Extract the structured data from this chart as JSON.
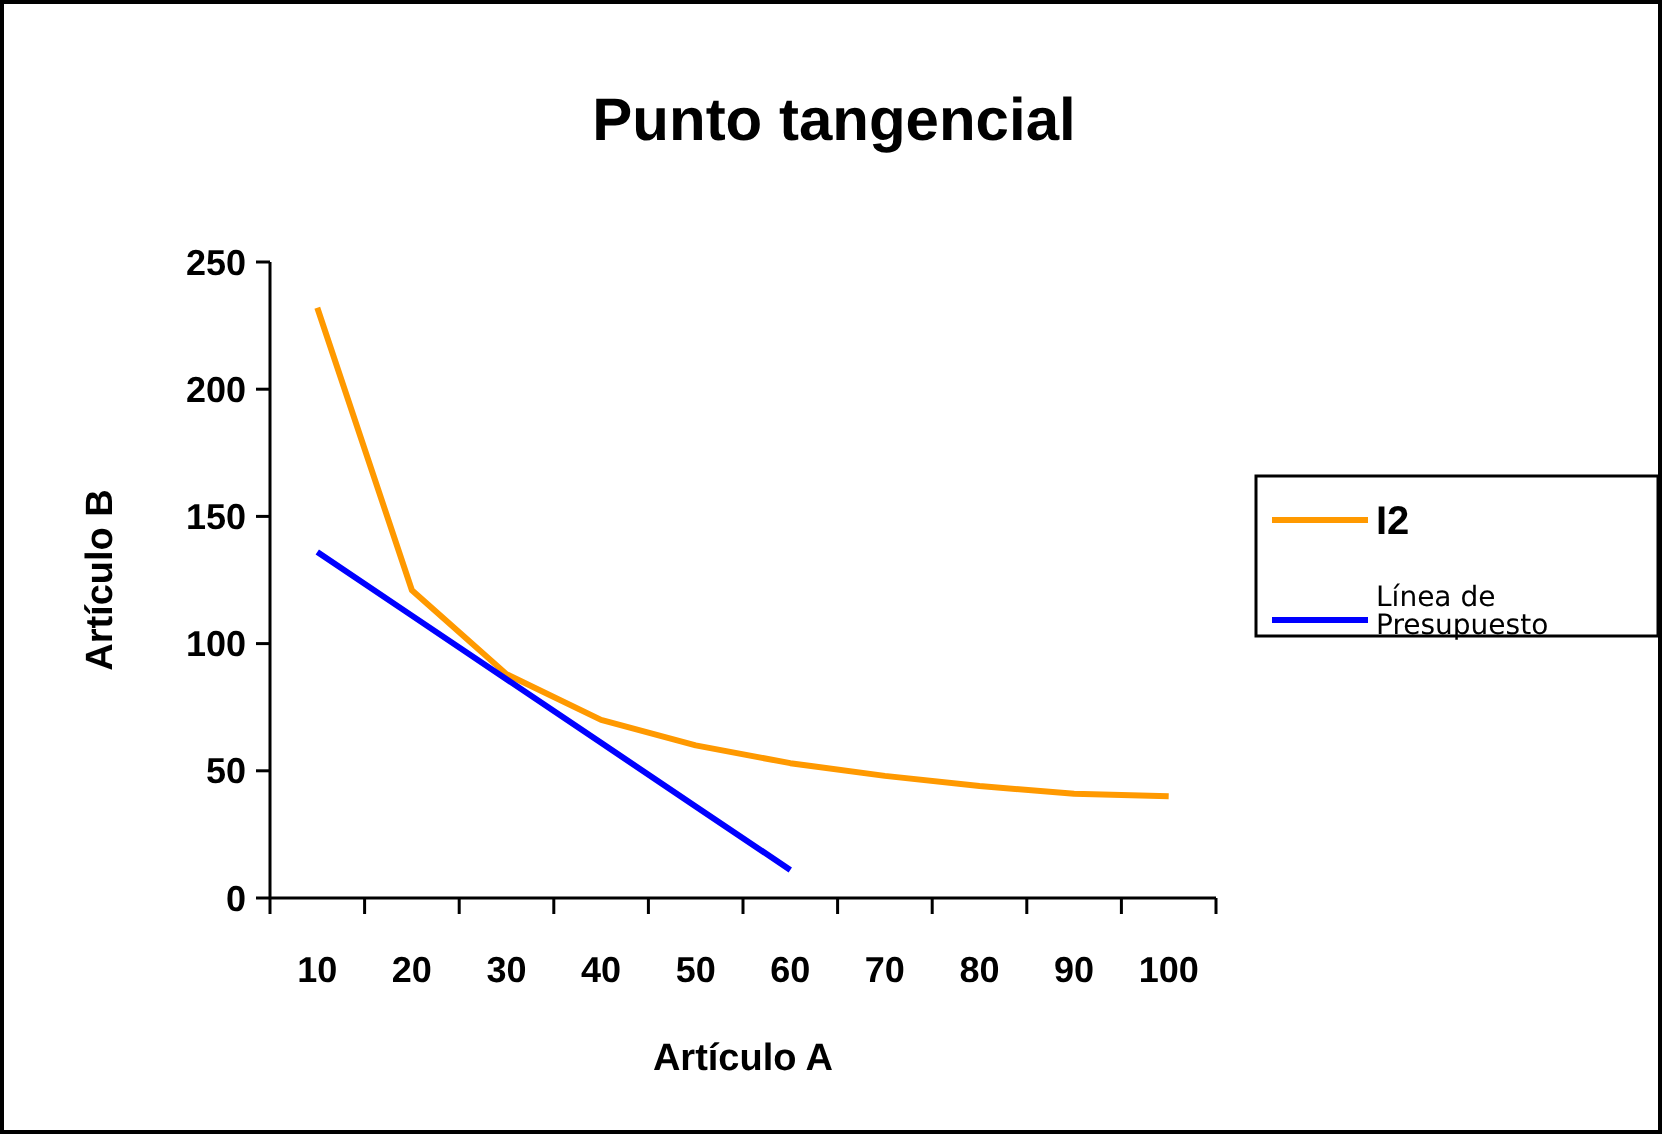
{
  "chart_data": {
    "type": "line",
    "title": "Punto tangencial",
    "xlabel": "Artículo A",
    "ylabel": "Artículo B",
    "categories": [
      "10",
      "20",
      "30",
      "40",
      "50",
      "60",
      "70",
      "80",
      "90",
      "100"
    ],
    "series": [
      {
        "name": "I2",
        "color": "#ff9900",
        "values": [
          232,
          121,
          88,
          70,
          60,
          53,
          48,
          44,
          41,
          40
        ]
      },
      {
        "name": "Línea de Presupuesto",
        "color": "#0000ff",
        "values": [
          136,
          111,
          86,
          61,
          36,
          11,
          null,
          null,
          null,
          null
        ]
      }
    ],
    "ylim": [
      0,
      250
    ],
    "yticks": [
      0,
      50,
      100,
      150,
      200,
      250
    ],
    "grid": false,
    "legend": "right",
    "marker": "none",
    "line_style": "solid"
  }
}
